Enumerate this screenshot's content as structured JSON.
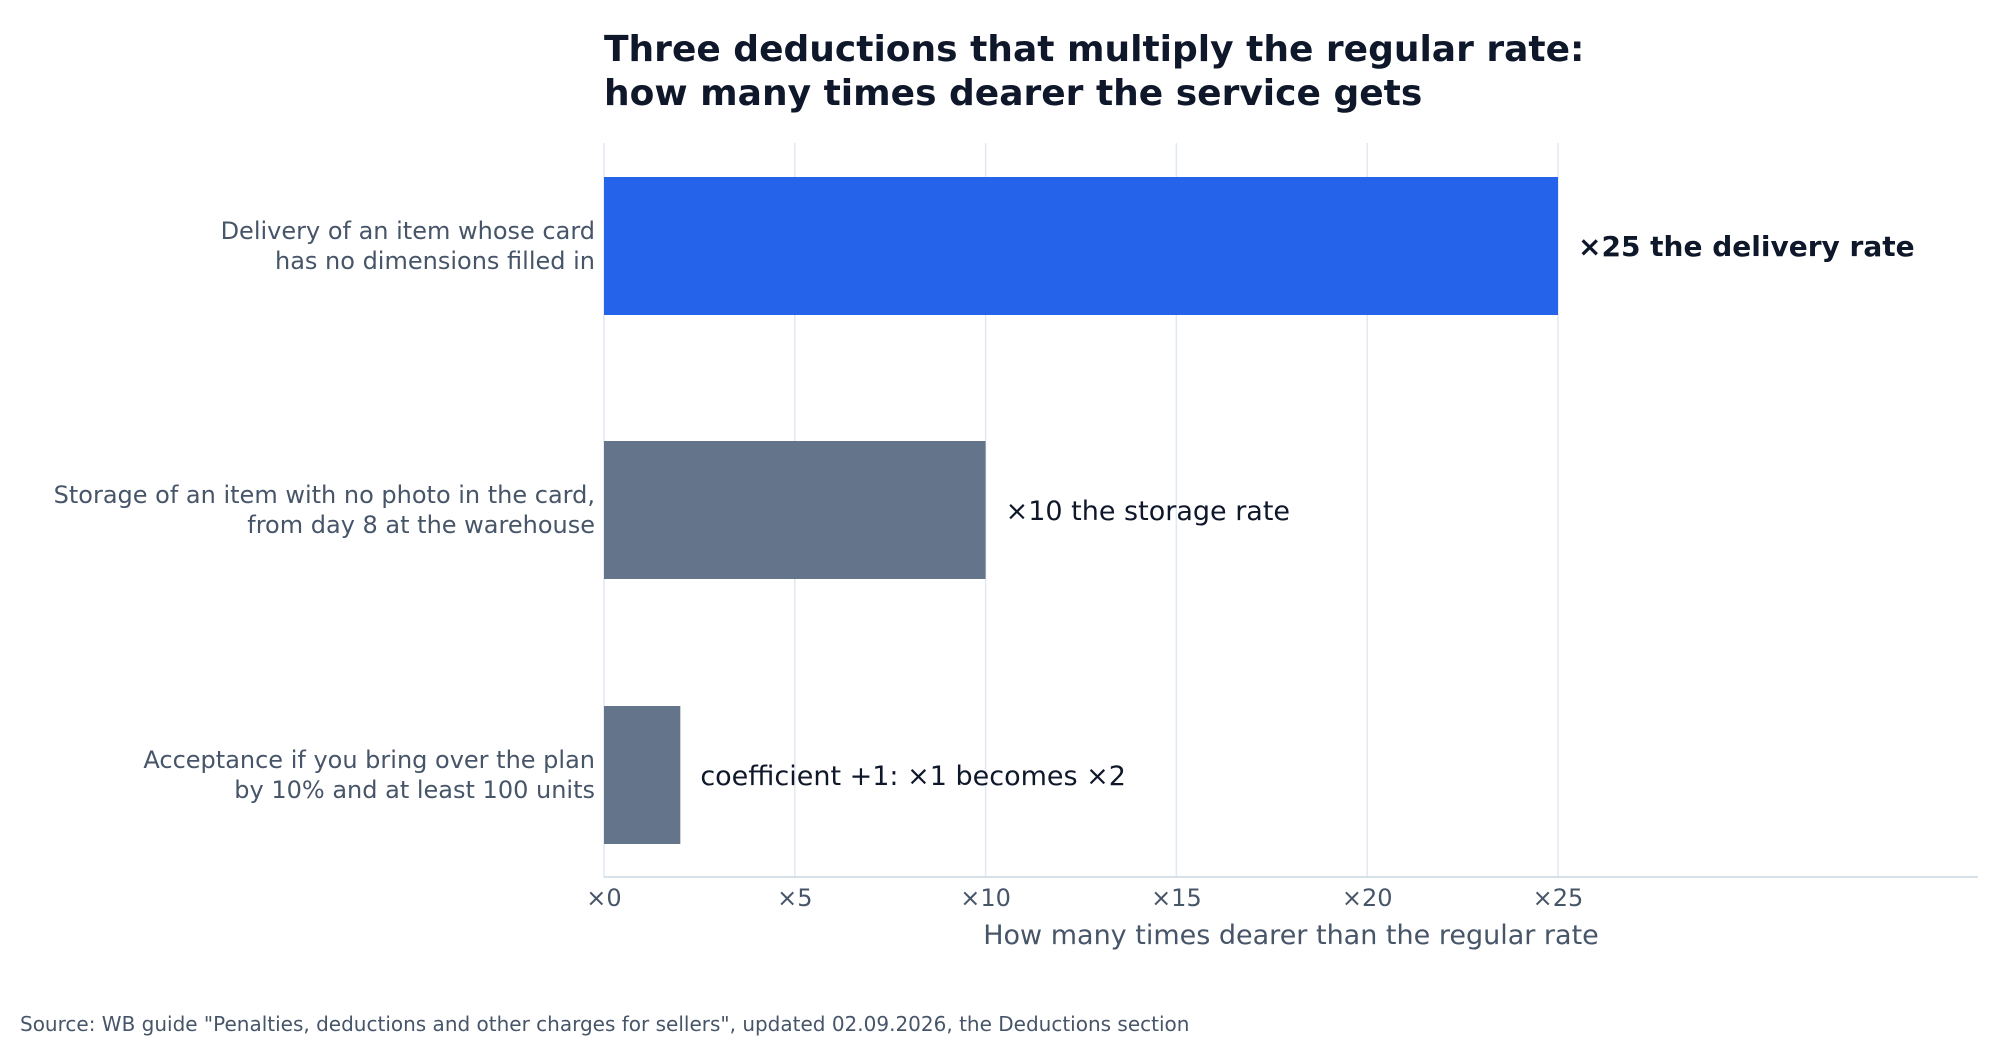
{
  "chart_data": {
    "type": "bar",
    "orientation": "horizontal",
    "title": "Three deductions that multiply the regular rate:\nhow many times dearer the service gets",
    "xlabel": "How many times dearer than the regular rate",
    "xlim": [
      0,
      36
    ],
    "ticks": [
      {
        "value": 0,
        "label": "×0"
      },
      {
        "value": 5,
        "label": "×5"
      },
      {
        "value": 10,
        "label": "×10"
      },
      {
        "value": 15,
        "label": "×15"
      },
      {
        "value": 20,
        "label": "×20"
      },
      {
        "value": 25,
        "label": "×25"
      }
    ],
    "grid": true,
    "bars": [
      {
        "category": "Delivery of an item whose card\nhas no dimensions filled in",
        "value": 25,
        "label": "×25 the delivery rate",
        "color": "#2563eb",
        "highlight": true
      },
      {
        "category": "Storage of an item with no photo in the card,\nfrom day 8 at the warehouse",
        "value": 10,
        "label": "×10 the storage rate",
        "color": "#64748b",
        "highlight": false
      },
      {
        "category": "Acceptance if you bring over the plan\nby 10% and at least 100 units",
        "value": 2,
        "label": "coefficient +1: ×1 becomes ×2",
        "color": "#64748b",
        "highlight": false
      }
    ],
    "source": "Source: WB guide \"Penalties, deductions and other charges for sellers\", updated 02.09.2026, the Deductions section"
  }
}
